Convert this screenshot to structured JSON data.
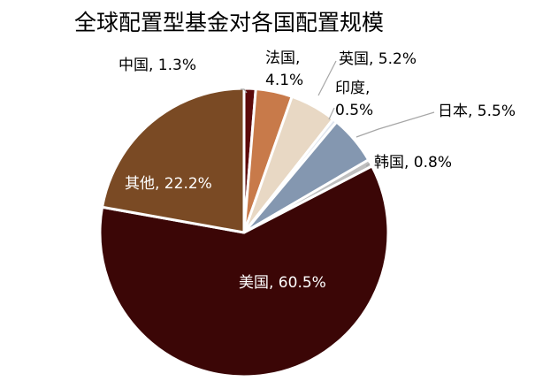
{
  "chart_data": {
    "type": "pie",
    "title": "全球配置型基金对各国配置规模",
    "slices": [
      {
        "name": "中国",
        "value": 1.3,
        "label_lines": [
          "中国, 1.3%"
        ],
        "color": "#5c0a0a"
      },
      {
        "name": "法国",
        "value": 4.1,
        "label_lines": [
          "法国,",
          "4.1%"
        ],
        "color": "#c87a4a"
      },
      {
        "name": "英国",
        "value": 5.2,
        "label_lines": [
          "英国, 5.2%"
        ],
        "color": "#e8d8c4"
      },
      {
        "name": "印度",
        "value": 0.5,
        "label_lines": [
          "印度,",
          "0.5%"
        ],
        "color": "#dfe5ee"
      },
      {
        "name": "日本",
        "value": 5.5,
        "label_lines": [
          "日本, 5.5%"
        ],
        "color": "#8497b0"
      },
      {
        "name": "韩国",
        "value": 0.8,
        "label_lines": [
          "韩国, 0.8%"
        ],
        "color": "#bfbfbf"
      },
      {
        "name": "美国",
        "value": 60.5,
        "label_lines": [
          "美国, 60.5%"
        ],
        "color": "#3b0606"
      },
      {
        "name": "其他",
        "value": 22.2,
        "label_lines": [
          "其他, 22.2%"
        ],
        "color": "#7a4a24"
      }
    ]
  }
}
